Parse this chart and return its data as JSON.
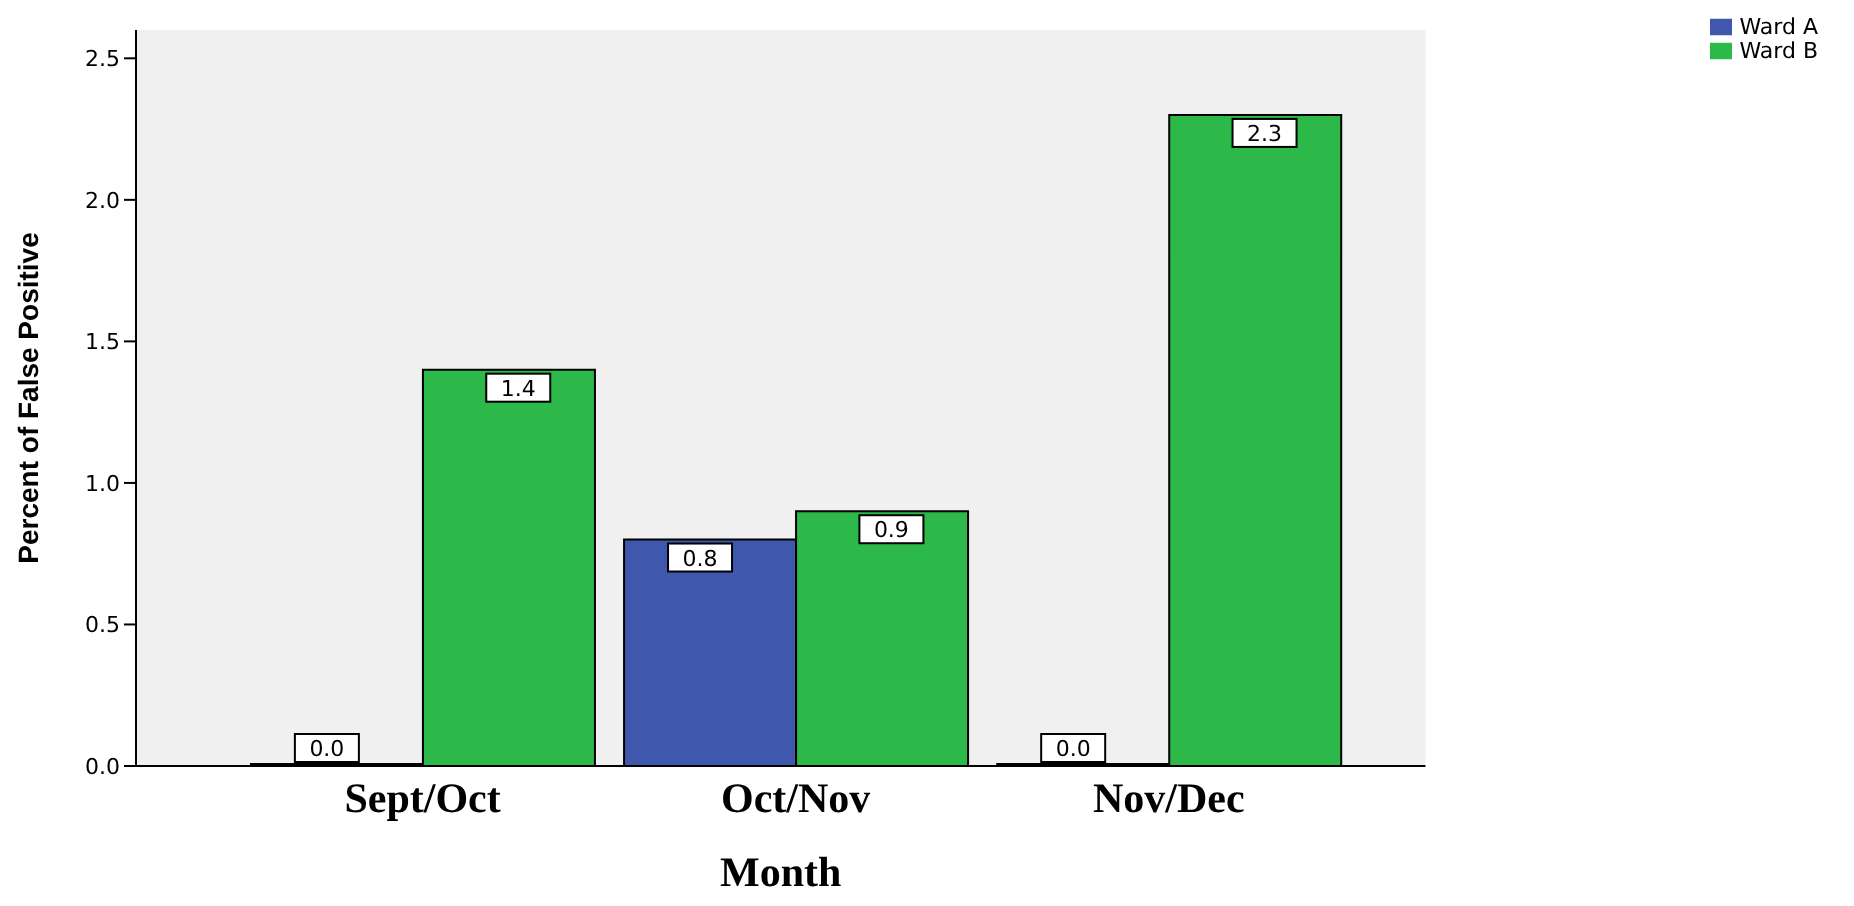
{
  "chart_data": {
    "type": "bar",
    "xlabel": "Month",
    "ylabel": "Percent of False Positive",
    "categories": [
      "Sept/Oct",
      "Oct/Nov",
      "Nov/Dec"
    ],
    "series": [
      {
        "name": "Ward A",
        "color": "#3f58ad",
        "values": [
          0,
          0.8,
          0
        ],
        "value_labels": [
          "0.0",
          "0.8",
          "0.0"
        ]
      },
      {
        "name": "Ward B",
        "color": "#2db84a",
        "values": [
          1.4,
          0.9,
          2.3
        ],
        "value_labels": [
          "1.4",
          "0.9",
          "2.3"
        ]
      }
    ],
    "ylim": [
      0,
      2.6
    ],
    "yticks": [
      {
        "value": 0,
        "label": "0.0"
      },
      {
        "value": 0.5,
        "label": "0.5"
      },
      {
        "value": 1,
        "label": "1.0"
      },
      {
        "value": 1.5,
        "label": "1.5"
      },
      {
        "value": 2,
        "label": "2.0"
      },
      {
        "value": 2.5,
        "label": "2.5"
      }
    ],
    "grid": false,
    "legend": "top right"
  }
}
